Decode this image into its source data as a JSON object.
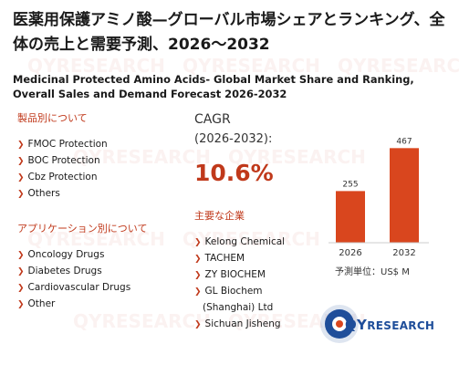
{
  "title_jp": "医薬用保護アミノ酸—グローバル市場シェアとランキング、全体の売上と需要予測、2026〜2032",
  "title_en": "Medicinal Protected Amino Acids- Global Market Share and Ranking, Overall Sales and Demand Forecast 2026-2032",
  "products": {
    "heading": "製品別について",
    "items": [
      "FMOC Protection",
      "BOC Protection",
      "Cbz Protection",
      "Others"
    ]
  },
  "applications": {
    "heading": "アプリケーション別について",
    "items": [
      "Oncology Drugs",
      "Diabetes Drugs",
      "Cardiovascular Drugs",
      "Other"
    ]
  },
  "cagr": {
    "label": "CAGR",
    "period": "(2026-2032):",
    "value": "10.6%"
  },
  "companies": {
    "heading": "主要な企業",
    "items": [
      "Kelong Chemical",
      "TACHEM",
      "ZY BIOCHEM",
      "GL Biochem",
      "(Shanghai) Ltd",
      "Sichuan Jisheng"
    ]
  },
  "chart_data": {
    "type": "bar",
    "categories": [
      "2026",
      "2032"
    ],
    "values": [
      255,
      467
    ],
    "value_labels": [
      "255",
      "467"
    ],
    "unit_label": "予測単位：US$ M",
    "ylim": [
      0,
      500
    ],
    "bar_color": "#d9461e"
  },
  "watermark": "QYRESEARCH",
  "logo": {
    "text": "QYRESEARCH",
    "text_parts": [
      "QY",
      "RESEARCH"
    ],
    "color": "#1f4e9a"
  }
}
